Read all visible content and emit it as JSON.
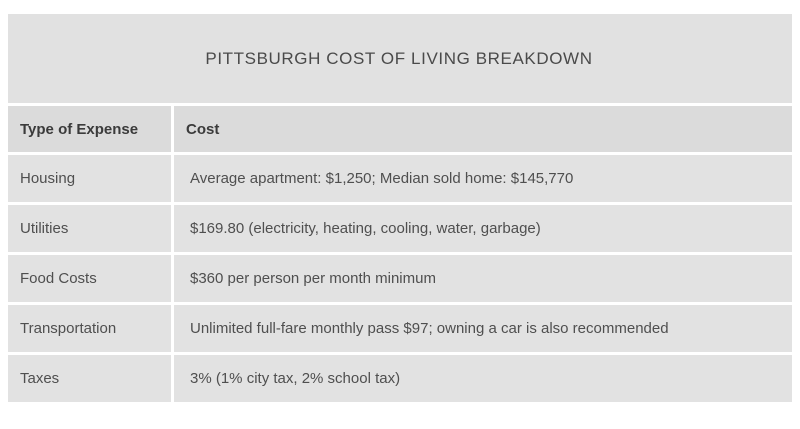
{
  "chart_data": {
    "type": "table",
    "title": "PITTSBURGH COST OF LIVING BREAKDOWN",
    "columns": [
      "Type of Expense",
      "Cost"
    ],
    "rows": [
      [
        "Housing",
        "Average apartment: $1,250; Median sold home: $145,770"
      ],
      [
        "Utilities",
        "$169.80 (electricity, heating, cooling, water, garbage)"
      ],
      [
        "Food Costs",
        "$360 per person per month minimum"
      ],
      [
        "Transportation",
        "Unlimited full-fare monthly pass $97; owning a car is also recommended"
      ],
      [
        "Taxes",
        "3% (1% city tax, 2% school tax)"
      ]
    ],
    "layout": {
      "legend": "none",
      "grid": "off",
      "gaps": "thin white separators between all cells"
    }
  },
  "colors": {
    "page_bg": "#ffffff",
    "title_bg": "#e1e1e1",
    "header_bg": "#dbdbdb",
    "cell_bg": "#e2e2e2",
    "title_text": "#4a4a4a",
    "header_text": "#3b3b3b",
    "cell_text": "#4f4f4f"
  }
}
